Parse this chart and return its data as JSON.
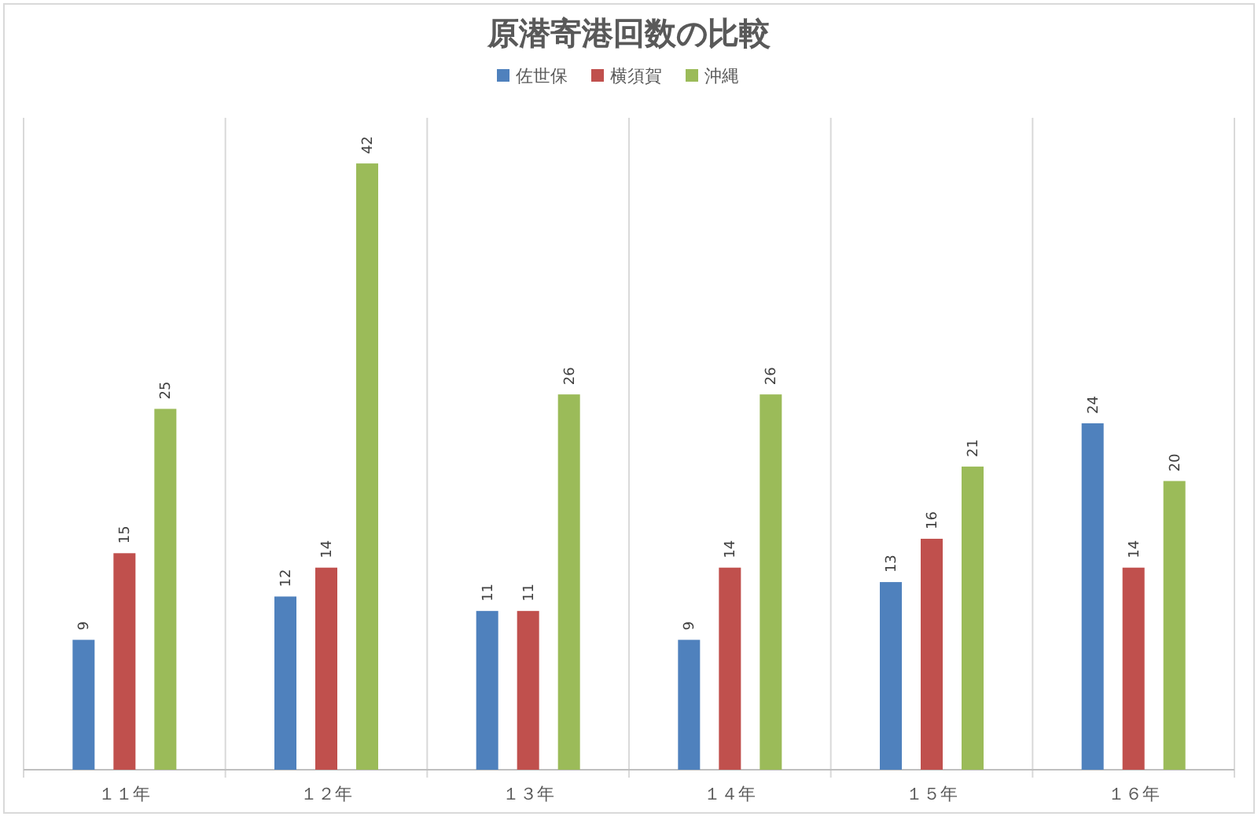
{
  "chart_data": {
    "type": "bar",
    "title": "原潜寄港回数の比較",
    "categories": [
      "１１年",
      "１２年",
      "１３年",
      "１４年",
      "１５年",
      "１６年"
    ],
    "series": [
      {
        "name": "佐世保",
        "color": "#4f81bd",
        "values": [
          9,
          12,
          11,
          9,
          13,
          24
        ]
      },
      {
        "name": "横須賀",
        "color": "#c0504d",
        "values": [
          15,
          14,
          11,
          14,
          16,
          14
        ]
      },
      {
        "name": "沖縄",
        "color": "#9bbb59",
        "values": [
          25,
          42,
          26,
          26,
          21,
          20
        ]
      }
    ],
    "data_labels": true,
    "grid": "x",
    "legend": "top"
  }
}
